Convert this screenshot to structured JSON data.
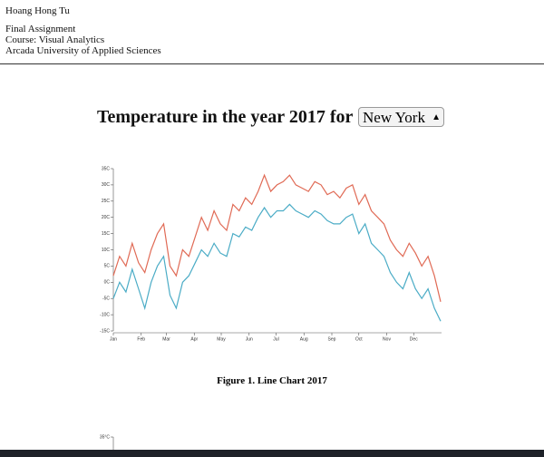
{
  "header": {
    "author": "Hoang Hong Tu",
    "lines": [
      "Final Assignment",
      "Course: Visual Analytics",
      "Arcada University of Applied Sciences"
    ]
  },
  "heading": "Temperature in the year 2017 for",
  "city_select": "New York",
  "chart_data": {
    "type": "line",
    "x": [
      0,
      7,
      14,
      21,
      28,
      35,
      42,
      49,
      56,
      63,
      70,
      77,
      84,
      91,
      98,
      105,
      112,
      119,
      126,
      133,
      140,
      147,
      154,
      161,
      168,
      175,
      182,
      189,
      196,
      203,
      210,
      217,
      224,
      231,
      238,
      245,
      252,
      259,
      266,
      273,
      280,
      287,
      294,
      301,
      308,
      315,
      322,
      329,
      336,
      343,
      350,
      357,
      364
    ],
    "series": [
      {
        "color": "#e06a55",
        "values": [
          2,
          8,
          5,
          12,
          6,
          3,
          10,
          15,
          18,
          5,
          2,
          10,
          8,
          14,
          20,
          16,
          22,
          18,
          16,
          24,
          22,
          26,
          24,
          28,
          33,
          28,
          30,
          31,
          33,
          30,
          29,
          28,
          31,
          30,
          27,
          28,
          26,
          29,
          30,
          24,
          27,
          22,
          20,
          18,
          13,
          10,
          8,
          12,
          9,
          5,
          8,
          2,
          -6
        ]
      },
      {
        "color": "#4bacc6",
        "values": [
          -5,
          0,
          -3,
          4,
          -2,
          -8,
          0,
          5,
          8,
          -4,
          -8,
          0,
          2,
          6,
          10,
          8,
          12,
          9,
          8,
          15,
          14,
          17,
          16,
          20,
          23,
          20,
          22,
          22,
          24,
          22,
          21,
          20,
          22,
          21,
          19,
          18,
          18,
          20,
          21,
          15,
          18,
          12,
          10,
          8,
          3,
          0,
          -2,
          3,
          -2,
          -5,
          -2,
          -8,
          -12
        ]
      }
    ],
    "xlim": [
      0,
      365
    ],
    "xticks": [
      {
        "value": 0,
        "label": "Jan"
      },
      {
        "value": 31,
        "label": "Feb"
      },
      {
        "value": 59,
        "label": "Mar"
      },
      {
        "value": 90,
        "label": "Apr"
      },
      {
        "value": 120,
        "label": "May"
      },
      {
        "value": 151,
        "label": "Jun"
      },
      {
        "value": 181,
        "label": "Jul"
      },
      {
        "value": 212,
        "label": "Aug"
      },
      {
        "value": 243,
        "label": "Sep"
      },
      {
        "value": 273,
        "label": "Oct"
      },
      {
        "value": 304,
        "label": "Nov"
      },
      {
        "value": 334,
        "label": "Dec"
      }
    ],
    "ylim": [
      -15,
      35
    ],
    "yticks": [
      {
        "value": -15,
        "label": "-15C"
      },
      {
        "value": -10,
        "label": "-10C"
      },
      {
        "value": -5,
        "label": "-5C"
      },
      {
        "value": 0,
        "label": "0C"
      },
      {
        "value": 5,
        "label": "5C"
      },
      {
        "value": 10,
        "label": "10C"
      },
      {
        "value": 15,
        "label": "15C"
      },
      {
        "value": 20,
        "label": "20C"
      },
      {
        "value": 25,
        "label": "25C"
      },
      {
        "value": 30,
        "label": "30C"
      },
      {
        "value": 35,
        "label": "35C"
      }
    ]
  },
  "caption": "Figure 1. Line Chart 2017",
  "second_chart": {
    "yticks": [
      {
        "value": 35,
        "label": "35°C"
      }
    ]
  }
}
